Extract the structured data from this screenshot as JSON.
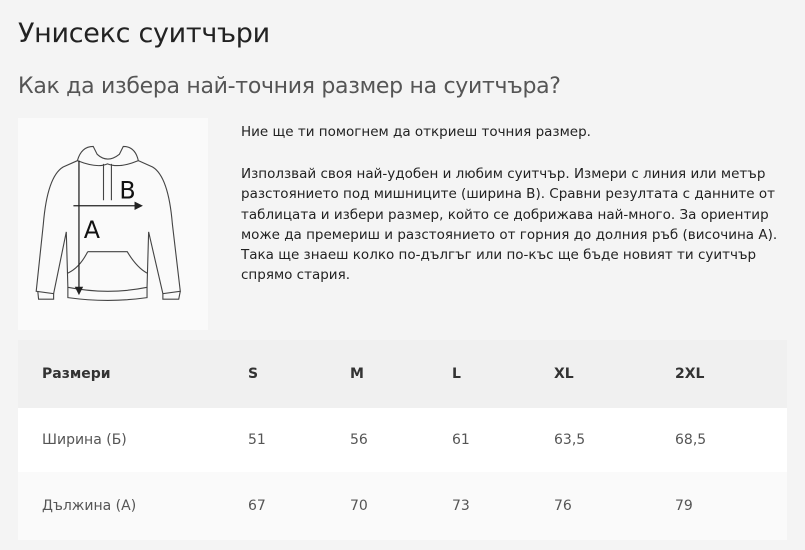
{
  "title": "Унисекс суитчъри",
  "subtitle": "Как да избера най-точния размер на суитчъра?",
  "image": {
    "labels": [
      "B",
      "A"
    ]
  },
  "intro": "Ние ще ти помогнем да откриеш точния размер.",
  "description": "Използвай своя най-удобен и любим суитчър. Измери с линия или метър разстоянието под мишниците (ширина B). Сравни резултата с данните от таблицата и избери размер, който се добрижава най-много. За ориентир може да премериш и разстоянието от горния до долния ръб (височина A). Така ще знаеш колко по-дългъг или по-къс ще бъде новият ти суитчър спрямо стария.",
  "table": {
    "headers": [
      "Размери",
      "S",
      "M",
      "L",
      "XL",
      "2XL"
    ],
    "rows": [
      [
        "Ширина (Б)",
        "51",
        "56",
        "61",
        "63,5",
        "68,5"
      ],
      [
        "Дължина (А)",
        "67",
        "70",
        "73",
        "76",
        "79"
      ]
    ]
  }
}
